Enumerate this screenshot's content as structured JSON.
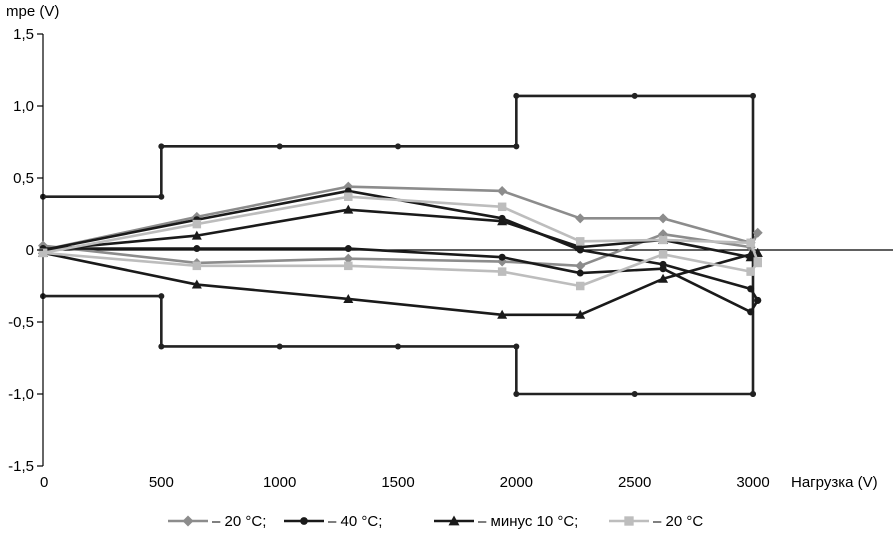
{
  "chart_data": {
    "type": "line",
    "ylabel": "mpe (V)",
    "xlabel": "Нагрузка (V)",
    "xlim": [
      0,
      3100
    ],
    "ylim": [
      -1.5,
      1.5
    ],
    "x_ticks": [
      {
        "value": 0,
        "label": "0"
      },
      {
        "value": 500,
        "label": "500"
      },
      {
        "value": 1000,
        "label": "1000"
      },
      {
        "value": 1500,
        "label": "1500"
      },
      {
        "value": 2000,
        "label": "2000"
      },
      {
        "value": 2500,
        "label": "2500"
      },
      {
        "value": 3000,
        "label": "3000"
      }
    ],
    "y_ticks": [
      {
        "value": 1.5,
        "label": "1,5"
      },
      {
        "value": 1.0,
        "label": "1,0"
      },
      {
        "value": 0.5,
        "label": "0,5"
      },
      {
        "value": 0,
        "label": "0"
      },
      {
        "value": -0.5,
        "label": "-0,5"
      },
      {
        "value": -1.0,
        "label": "-1,0"
      },
      {
        "value": -1.5,
        "label": "-1,5"
      }
    ],
    "grid": false,
    "legend_position": "bottom",
    "limit_lines": [
      {
        "points": [
          [
            0,
            0.37
          ],
          [
            500,
            0.37
          ],
          [
            500,
            0.72
          ],
          [
            1000,
            0.72
          ],
          [
            1500,
            0.72
          ],
          [
            2000,
            0.72
          ],
          [
            2000,
            1.07
          ],
          [
            2500,
            1.07
          ],
          [
            3000,
            1.07
          ],
          [
            3000,
            -1.0
          ]
        ],
        "color": "#222222"
      },
      {
        "points": [
          [
            0,
            -0.32
          ],
          [
            500,
            -0.32
          ],
          [
            500,
            -0.67
          ],
          [
            1000,
            -0.67
          ],
          [
            1500,
            -0.67
          ],
          [
            2000,
            -0.67
          ],
          [
            2000,
            -1.0
          ],
          [
            2500,
            -1.0
          ],
          [
            3000,
            -1.0
          ]
        ],
        "color": "#222222"
      }
    ],
    "series": [
      {
        "name": "– 20 °C;",
        "marker": "diamond",
        "color": "#8c8c8c",
        "lines": [
          [
            [
              0,
              0
            ],
            [
              650,
              0.23
            ],
            [
              1290,
              0.44
            ],
            [
              1940,
              0.41
            ],
            [
              2270,
              0.22
            ],
            [
              2620,
              0.22
            ],
            [
              2990,
              0.05
            ]
          ],
          [
            [
              0,
              0.03
            ],
            [
              650,
              -0.09
            ],
            [
              1290,
              -0.06
            ],
            [
              1940,
              -0.08
            ],
            [
              2270,
              -0.11
            ],
            [
              2620,
              0.11
            ],
            [
              2990,
              0.02
            ],
            [
              3020,
              0.12
            ]
          ]
        ]
      },
      {
        "name": "– 40 °C;",
        "marker": "circle",
        "color": "#1a1a1a",
        "lines": [
          [
            [
              0,
              0
            ],
            [
              650,
              0.21
            ],
            [
              1290,
              0.41
            ],
            [
              1940,
              0.22
            ],
            [
              2270,
              0.0
            ],
            [
              2620,
              -0.1
            ],
            [
              2990,
              -0.27
            ],
            [
              3020,
              -0.35
            ]
          ],
          [
            [
              0,
              0.01
            ],
            [
              650,
              0.01
            ],
            [
              1290,
              0.01
            ],
            [
              1940,
              -0.05
            ],
            [
              2270,
              -0.16
            ],
            [
              2620,
              -0.13
            ],
            [
              2990,
              -0.43
            ],
            [
              3020,
              -0.35
            ]
          ]
        ]
      },
      {
        "name": "– минус 10 °C;",
        "marker": "triangle",
        "color": "#1a1a1a",
        "lines": [
          [
            [
              0,
              0
            ],
            [
              650,
              0.1
            ],
            [
              1290,
              0.28
            ],
            [
              1940,
              0.2
            ],
            [
              2270,
              0.02
            ],
            [
              2620,
              0.07
            ],
            [
              2990,
              -0.05
            ],
            [
              3020,
              -0.02
            ]
          ],
          [
            [
              0,
              -0.02
            ],
            [
              650,
              -0.24
            ],
            [
              1290,
              -0.34
            ],
            [
              1940,
              -0.45
            ],
            [
              2270,
              -0.45
            ],
            [
              2620,
              -0.2
            ],
            [
              2990,
              -0.03
            ],
            [
              3020,
              -0.02
            ]
          ]
        ]
      },
      {
        "name": "– 20 °C",
        "marker": "square",
        "color": "#bdbdbd",
        "lines": [
          [
            [
              0,
              -0.02
            ],
            [
              650,
              0.18
            ],
            [
              1290,
              0.37
            ],
            [
              1940,
              0.3
            ],
            [
              2270,
              0.06
            ],
            [
              2620,
              0.07
            ],
            [
              2990,
              0.05
            ],
            [
              3020,
              -0.08
            ]
          ],
          [
            [
              0,
              -0.02
            ],
            [
              650,
              -0.11
            ],
            [
              1290,
              -0.11
            ],
            [
              1940,
              -0.15
            ],
            [
              2270,
              -0.25
            ],
            [
              2620,
              -0.03
            ],
            [
              2990,
              -0.15
            ],
            [
              3020,
              -0.09
            ]
          ]
        ]
      }
    ]
  }
}
